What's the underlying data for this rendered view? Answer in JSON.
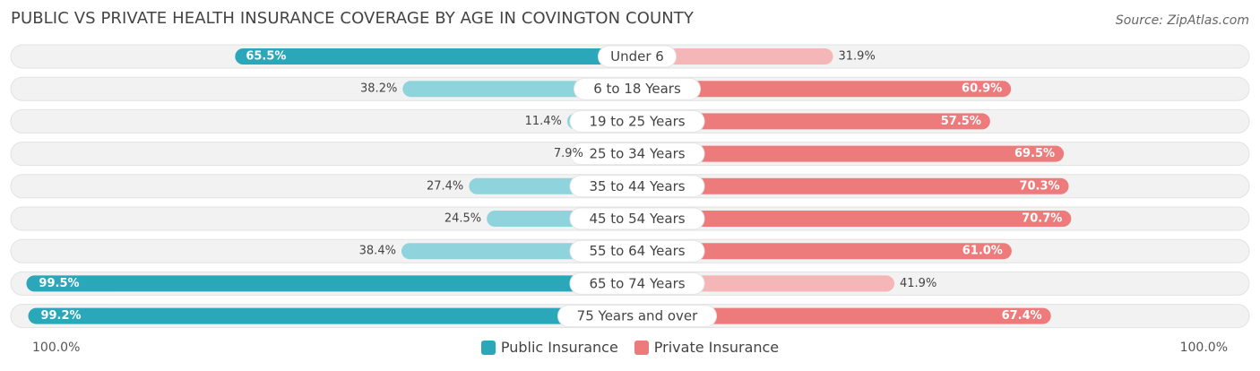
{
  "title": "PUBLIC VS PRIVATE HEALTH INSURANCE COVERAGE BY AGE IN COVINGTON COUNTY",
  "source": "Source: ZipAtlas.com",
  "axis": {
    "left_label": "100.0%",
    "right_label": "100.0%"
  },
  "legend": {
    "public_label": "Public Insurance",
    "private_label": "Private Insurance"
  },
  "colors": {
    "public_strong": "#2aa7b8",
    "public_light": "#8fd3dc",
    "private_strong": "#ee7b7b",
    "private_light": "#f4b6b6",
    "track": "#f2f2f2"
  },
  "chart_data": {
    "type": "bar",
    "orientation": "horizontal-diverging",
    "title": "PUBLIC VS PRIVATE HEALTH INSURANCE COVERAGE BY AGE IN COVINGTON COUNTY",
    "categories": [
      "Under 6",
      "6 to 18 Years",
      "19 to 25 Years",
      "25 to 34 Years",
      "35 to 44 Years",
      "45 to 54 Years",
      "55 to 64 Years",
      "65 to 74 Years",
      "75 Years and over"
    ],
    "series": [
      {
        "name": "Public Insurance",
        "side": "left",
        "values": [
          65.5,
          38.2,
          11.4,
          7.9,
          27.4,
          24.5,
          38.4,
          99.5,
          99.2
        ],
        "labels": [
          "65.5%",
          "38.2%",
          "11.4%",
          "7.9%",
          "27.4%",
          "24.5%",
          "38.4%",
          "99.5%",
          "99.2%"
        ]
      },
      {
        "name": "Private Insurance",
        "side": "right",
        "values": [
          31.9,
          60.9,
          57.5,
          69.5,
          70.3,
          70.7,
          61.0,
          41.9,
          67.4
        ],
        "labels": [
          "31.9%",
          "60.9%",
          "57.5%",
          "69.5%",
          "70.3%",
          "70.7%",
          "61.0%",
          "41.9%",
          "67.4%"
        ]
      }
    ],
    "xlim": [
      0,
      100
    ],
    "legend_position": "bottom-center"
  }
}
